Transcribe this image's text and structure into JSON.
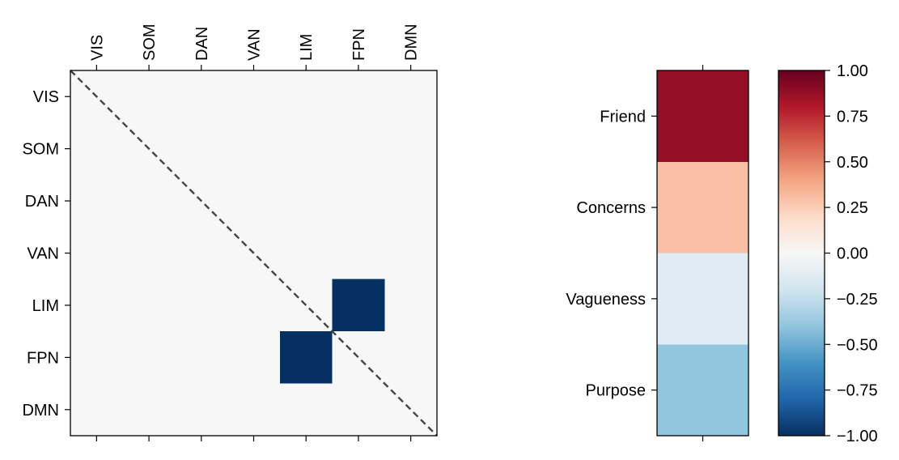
{
  "chart_data": [
    {
      "type": "heatmap",
      "name": "network-connectivity-matrix",
      "x_categories": [
        "VIS",
        "SOM",
        "DAN",
        "VAN",
        "LIM",
        "FPN",
        "DMN"
      ],
      "y_categories": [
        "VIS",
        "SOM",
        "DAN",
        "VAN",
        "LIM",
        "FPN",
        "DMN"
      ],
      "values": [
        [
          0,
          0,
          0,
          0,
          0,
          0,
          0
        ],
        [
          0,
          0,
          0,
          0,
          0,
          0,
          0
        ],
        [
          0,
          0,
          0,
          0,
          0,
          0,
          0
        ],
        [
          0,
          0,
          0,
          0,
          0,
          0,
          0
        ],
        [
          0,
          0,
          0,
          0,
          0,
          -1,
          0
        ],
        [
          0,
          0,
          0,
          0,
          -1,
          0,
          0
        ],
        [
          0,
          0,
          0,
          0,
          0,
          0,
          0
        ]
      ],
      "diagonal_line": "dashed",
      "x_tick_position": "top",
      "vmin": -1,
      "vmax": 1,
      "colormap": "RdBu_r"
    },
    {
      "type": "heatmap",
      "name": "item-weights",
      "y_categories": [
        "Friend",
        "Concerns",
        "Vagueness",
        "Purpose"
      ],
      "values": [
        0.88,
        0.3,
        -0.12,
        -0.4
      ],
      "vmin": -1,
      "vmax": 1,
      "colormap": "RdBu_r"
    },
    {
      "type": "colorbar",
      "name": "colorbar",
      "ticks": [
        1.0,
        0.75,
        0.5,
        0.25,
        0.0,
        -0.25,
        -0.5,
        -0.75,
        -1.0
      ],
      "tick_labels": [
        "1.00",
        "0.75",
        "0.50",
        "0.25",
        "0.00",
        "−0.25",
        "−0.50",
        "−0.75",
        "−1.00"
      ],
      "vmin": -1,
      "vmax": 1
    }
  ],
  "colors": {
    "cmap_stops": [
      "#053061",
      "#2166ac",
      "#4393c3",
      "#92c5de",
      "#d1e5f0",
      "#f7f7f7",
      "#fddbc7",
      "#f4a582",
      "#d6604d",
      "#b2182b",
      "#67001f"
    ],
    "axis": "#000000",
    "diagonal": "#444444"
  }
}
